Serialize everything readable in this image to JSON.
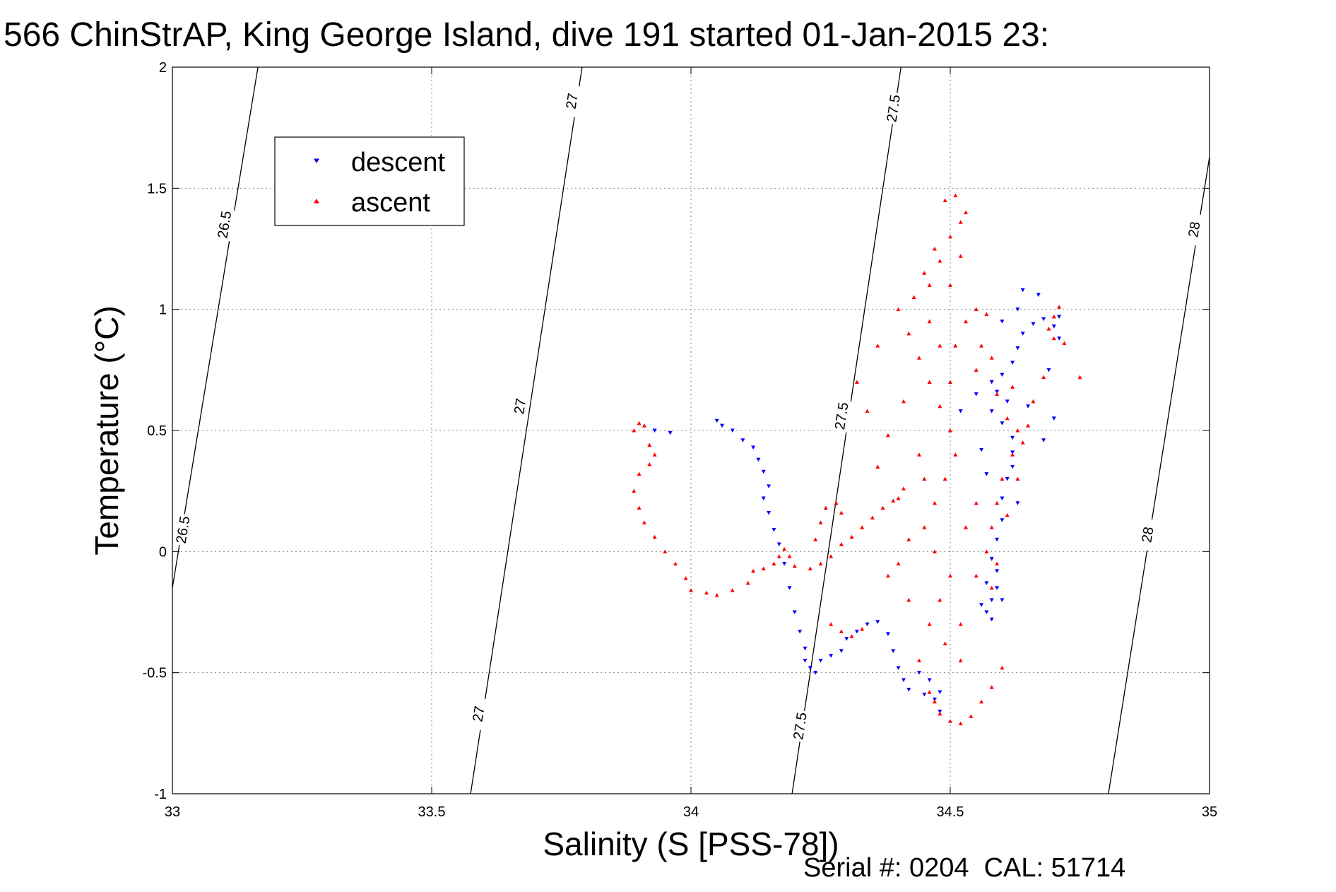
{
  "chart_data": {
    "type": "scatter",
    "title": "566 ChinStrAP, King George Island, dive 191 started 01-Jan-2015 23:",
    "xlabel": "Salinity (S [PSS-78])",
    "ylabel": "Temperature (°C)",
    "footer": "Serial #: 0204  CAL: 51714",
    "xlim": [
      33,
      35
    ],
    "ylim": [
      -1,
      2
    ],
    "xticks": [
      33,
      33.5,
      34,
      34.5,
      35
    ],
    "yticks": [
      -1,
      -0.5,
      0,
      0.5,
      1,
      1.5,
      2
    ],
    "xtick_labels": [
      "33",
      "33.5",
      "34",
      "34.5",
      "35"
    ],
    "ytick_labels": [
      "-1",
      "-0.5",
      "0",
      "0.5",
      "1",
      "1.5",
      "2"
    ],
    "grid": true,
    "legend_position": "top-left",
    "contours": [
      {
        "label": "26.5",
        "points": [
          [
            33.0,
            -0.15
          ],
          [
            33.165,
            2.0
          ]
        ],
        "label_positions": [
          [
            33.1,
            1.35
          ],
          [
            33.02,
            0.09
          ]
        ]
      },
      {
        "label": "27",
        "points": [
          [
            33.575,
            -1.0
          ],
          [
            33.79,
            2.0
          ]
        ],
        "label_positions": [
          [
            33.77,
            1.86
          ],
          [
            33.67,
            0.6
          ],
          [
            33.59,
            -0.67
          ]
        ]
      },
      {
        "label": "27.5",
        "points": [
          [
            34.195,
            -1.0
          ],
          [
            34.405,
            2.0
          ]
        ],
        "label_positions": [
          [
            34.39,
            1.83
          ],
          [
            34.29,
            0.56
          ],
          [
            34.21,
            -0.72
          ]
        ]
      },
      {
        "label": "28",
        "points": [
          [
            34.805,
            -1.0
          ],
          [
            35.0,
            1.63
          ]
        ],
        "label_positions": [
          [
            34.97,
            1.33
          ],
          [
            34.88,
            0.07
          ]
        ]
      }
    ],
    "series": [
      {
        "name": "descent",
        "color": "#0000ff",
        "marker": "triangle-down",
        "points": [
          [
            33.93,
            0.5
          ],
          [
            33.96,
            0.49
          ],
          [
            34.05,
            0.54
          ],
          [
            34.06,
            0.52
          ],
          [
            34.08,
            0.5
          ],
          [
            34.1,
            0.46
          ],
          [
            34.12,
            0.43
          ],
          [
            34.13,
            0.38
          ],
          [
            34.14,
            0.33
          ],
          [
            34.15,
            0.27
          ],
          [
            34.14,
            0.22
          ],
          [
            34.15,
            0.16
          ],
          [
            34.16,
            0.09
          ],
          [
            34.17,
            0.03
          ],
          [
            34.18,
            -0.05
          ],
          [
            34.19,
            -0.15
          ],
          [
            34.2,
            -0.25
          ],
          [
            34.21,
            -0.33
          ],
          [
            34.22,
            -0.4
          ],
          [
            34.22,
            -0.45
          ],
          [
            34.23,
            -0.48
          ],
          [
            34.24,
            -0.5
          ],
          [
            34.25,
            -0.45
          ],
          [
            34.27,
            -0.43
          ],
          [
            34.29,
            -0.41
          ],
          [
            34.3,
            -0.36
          ],
          [
            34.32,
            -0.33
          ],
          [
            34.34,
            -0.3
          ],
          [
            34.36,
            -0.29
          ],
          [
            34.38,
            -0.34
          ],
          [
            34.39,
            -0.41
          ],
          [
            34.4,
            -0.48
          ],
          [
            34.41,
            -0.53
          ],
          [
            34.42,
            -0.57
          ],
          [
            34.44,
            -0.5
          ],
          [
            34.46,
            -0.53
          ],
          [
            34.48,
            -0.58
          ],
          [
            34.47,
            -0.61
          ],
          [
            34.45,
            -0.59
          ],
          [
            34.48,
            -0.66
          ],
          [
            34.57,
            -0.25
          ],
          [
            34.58,
            -0.2
          ],
          [
            34.57,
            -0.13
          ],
          [
            34.59,
            -0.08
          ],
          [
            34.58,
            -0.03
          ],
          [
            34.59,
            0.05
          ],
          [
            34.6,
            0.13
          ],
          [
            34.6,
            0.22
          ],
          [
            34.61,
            0.3
          ],
          [
            34.62,
            0.35
          ],
          [
            34.62,
            0.41
          ],
          [
            34.62,
            0.47
          ],
          [
            34.6,
            0.53
          ],
          [
            34.58,
            0.58
          ],
          [
            34.59,
            0.66
          ],
          [
            34.6,
            0.73
          ],
          [
            34.62,
            0.78
          ],
          [
            34.63,
            0.84
          ],
          [
            34.64,
            0.9
          ],
          [
            34.66,
            0.94
          ],
          [
            34.68,
            0.96
          ],
          [
            34.7,
            0.93
          ],
          [
            34.71,
            0.88
          ],
          [
            34.71,
            0.97
          ],
          [
            34.67,
            1.06
          ],
          [
            34.64,
            1.08
          ],
          [
            34.63,
            1.0
          ],
          [
            34.6,
            0.95
          ],
          [
            34.69,
            0.75
          ],
          [
            34.7,
            0.55
          ],
          [
            34.58,
            0.7
          ],
          [
            34.55,
            0.65
          ],
          [
            34.52,
            0.58
          ],
          [
            34.56,
            0.42
          ],
          [
            34.57,
            0.32
          ],
          [
            34.6,
            -0.2
          ],
          [
            34.58,
            -0.28
          ],
          [
            34.56,
            -0.22
          ],
          [
            34.59,
            -0.15
          ],
          [
            34.61,
            0.62
          ],
          [
            34.65,
            0.6
          ],
          [
            34.68,
            0.46
          ],
          [
            34.63,
            0.2
          ]
        ]
      },
      {
        "name": "ascent",
        "color": "#ff0000",
        "marker": "triangle-up",
        "points": [
          [
            33.9,
            0.53
          ],
          [
            33.89,
            0.5
          ],
          [
            33.91,
            0.52
          ],
          [
            33.92,
            0.44
          ],
          [
            33.93,
            0.4
          ],
          [
            33.92,
            0.36
          ],
          [
            33.9,
            0.32
          ],
          [
            33.89,
            0.25
          ],
          [
            33.9,
            0.18
          ],
          [
            33.91,
            0.12
          ],
          [
            33.93,
            0.06
          ],
          [
            33.95,
            0.0
          ],
          [
            33.97,
            -0.05
          ],
          [
            33.99,
            -0.11
          ],
          [
            34.0,
            -0.16
          ],
          [
            34.03,
            -0.17
          ],
          [
            34.05,
            -0.18
          ],
          [
            34.08,
            -0.16
          ],
          [
            34.11,
            -0.13
          ],
          [
            34.12,
            -0.08
          ],
          [
            34.14,
            -0.07
          ],
          [
            34.16,
            -0.05
          ],
          [
            34.17,
            -0.02
          ],
          [
            34.18,
            0.01
          ],
          [
            34.19,
            -0.02
          ],
          [
            34.2,
            -0.06
          ],
          [
            34.23,
            -0.07
          ],
          [
            34.25,
            -0.05
          ],
          [
            34.27,
            -0.02
          ],
          [
            34.29,
            0.03
          ],
          [
            34.31,
            0.06
          ],
          [
            34.33,
            0.1
          ],
          [
            34.35,
            0.14
          ],
          [
            34.37,
            0.18
          ],
          [
            34.39,
            0.21
          ],
          [
            34.41,
            0.26
          ],
          [
            34.26,
            0.18
          ],
          [
            34.28,
            0.2
          ],
          [
            34.29,
            0.16
          ],
          [
            34.25,
            0.12
          ],
          [
            34.27,
            -0.3
          ],
          [
            34.29,
            -0.33
          ],
          [
            34.31,
            -0.35
          ],
          [
            34.33,
            -0.32
          ],
          [
            34.24,
            0.05
          ],
          [
            34.46,
            -0.58
          ],
          [
            34.47,
            -0.62
          ],
          [
            34.48,
            -0.67
          ],
          [
            34.5,
            -0.7
          ],
          [
            34.52,
            -0.71
          ],
          [
            34.54,
            -0.68
          ],
          [
            34.56,
            -0.62
          ],
          [
            34.58,
            -0.56
          ],
          [
            34.6,
            -0.48
          ],
          [
            34.52,
            -0.45
          ],
          [
            34.49,
            -0.38
          ],
          [
            34.46,
            -0.3
          ],
          [
            34.48,
            -0.2
          ],
          [
            34.5,
            -0.1
          ],
          [
            34.47,
            0.0
          ],
          [
            34.45,
            0.1
          ],
          [
            34.47,
            0.2
          ],
          [
            34.49,
            0.3
          ],
          [
            34.51,
            0.4
          ],
          [
            34.5,
            0.5
          ],
          [
            34.48,
            0.6
          ],
          [
            34.46,
            0.7
          ],
          [
            34.44,
            0.8
          ],
          [
            34.42,
            0.9
          ],
          [
            34.4,
            1.0
          ],
          [
            34.43,
            1.05
          ],
          [
            34.46,
            1.1
          ],
          [
            34.48,
            1.2
          ],
          [
            34.5,
            1.3
          ],
          [
            34.52,
            1.36
          ],
          [
            34.53,
            1.4
          ],
          [
            34.51,
            1.47
          ],
          [
            34.49,
            1.45
          ],
          [
            34.47,
            1.25
          ],
          [
            34.45,
            1.15
          ],
          [
            34.55,
            1.0
          ],
          [
            34.57,
            0.98
          ],
          [
            34.53,
            0.95
          ],
          [
            34.51,
            0.85
          ],
          [
            34.55,
            0.75
          ],
          [
            34.59,
            0.65
          ],
          [
            34.61,
            0.55
          ],
          [
            34.63,
            0.5
          ],
          [
            34.65,
            0.52
          ],
          [
            34.64,
            0.45
          ],
          [
            34.62,
            0.4
          ],
          [
            34.6,
            0.3
          ],
          [
            34.59,
            0.2
          ],
          [
            34.58,
            0.1
          ],
          [
            34.57,
            0.0
          ],
          [
            34.59,
            -0.05
          ],
          [
            34.58,
            -0.15
          ],
          [
            34.71,
            1.01
          ],
          [
            34.7,
            0.97
          ],
          [
            34.69,
            0.92
          ],
          [
            34.7,
            0.88
          ],
          [
            34.72,
            0.86
          ],
          [
            34.68,
            0.72
          ],
          [
            34.66,
            0.62
          ],
          [
            34.62,
            0.68
          ],
          [
            34.75,
            0.72
          ],
          [
            34.38,
            0.48
          ],
          [
            34.36,
            0.35
          ],
          [
            34.34,
            0.58
          ],
          [
            34.32,
            0.7
          ],
          [
            34.36,
            0.85
          ],
          [
            34.4,
            0.22
          ],
          [
            34.42,
            0.05
          ],
          [
            34.38,
            -0.1
          ],
          [
            34.42,
            -0.2
          ],
          [
            34.44,
            -0.45
          ],
          [
            34.55,
            0.2
          ],
          [
            34.53,
            0.1
          ],
          [
            34.55,
            -0.1
          ],
          [
            34.52,
            -0.3
          ],
          [
            34.5,
            0.7
          ],
          [
            34.44,
            0.4
          ],
          [
            34.41,
            0.62
          ],
          [
            34.46,
            0.95
          ],
          [
            34.52,
            1.22
          ],
          [
            34.56,
            0.85
          ],
          [
            34.58,
            0.8
          ],
          [
            34.63,
            0.3
          ],
          [
            34.61,
            0.15
          ],
          [
            34.45,
            0.3
          ],
          [
            34.4,
            -0.05
          ],
          [
            34.48,
            0.85
          ],
          [
            34.5,
            1.1
          ]
        ]
      }
    ]
  }
}
